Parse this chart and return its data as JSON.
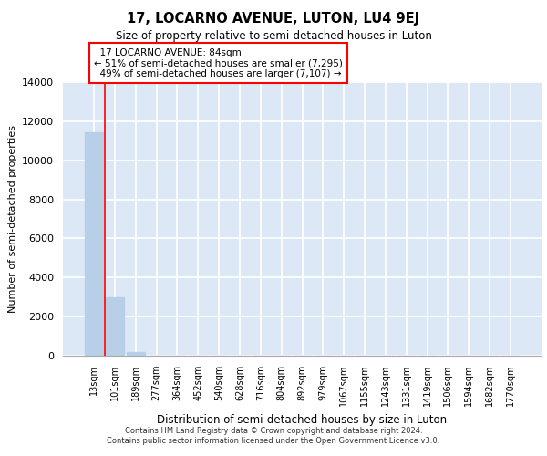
{
  "title": "17, LOCARNO AVENUE, LUTON, LU4 9EJ",
  "subtitle": "Size of property relative to semi-detached houses in Luton",
  "xlabel": "Distribution of semi-detached houses by size in Luton",
  "ylabel": "Number of semi-detached properties",
  "categories": [
    "13sqm",
    "101sqm",
    "189sqm",
    "277sqm",
    "364sqm",
    "452sqm",
    "540sqm",
    "628sqm",
    "716sqm",
    "804sqm",
    "892sqm",
    "979sqm",
    "1067sqm",
    "1155sqm",
    "1243sqm",
    "1331sqm",
    "1419sqm",
    "1506sqm",
    "1594sqm",
    "1682sqm",
    "1770sqm"
  ],
  "values": [
    11450,
    2980,
    175,
    10,
    5,
    3,
    2,
    1,
    1,
    1,
    1,
    1,
    1,
    1,
    1,
    1,
    1,
    1,
    1,
    1,
    1
  ],
  "bar_color": "#b8cfe8",
  "property_sqm": 84,
  "pct_smaller": 51,
  "pct_larger": 49,
  "count_smaller": 7295,
  "count_larger": 7107,
  "ylim": [
    0,
    14000
  ],
  "yticks": [
    0,
    2000,
    4000,
    6000,
    8000,
    10000,
    12000,
    14000
  ],
  "background_color": "#dce8f5",
  "grid_color": "#ffffff",
  "footer_line1": "Contains HM Land Registry data © Crown copyright and database right 2024.",
  "footer_line2": "Contains public sector information licensed under the Open Government Licence v3.0."
}
